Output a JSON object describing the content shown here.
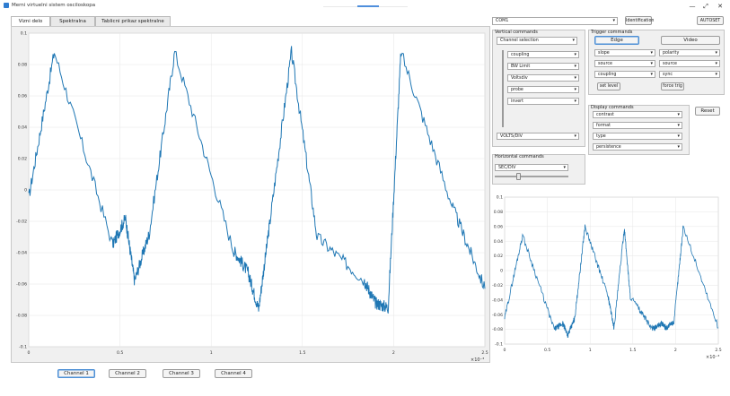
{
  "window": {
    "title": "Merni virtuelni sistem osciloskopa",
    "minimize": "—",
    "restore": "⤢",
    "close": "✕"
  },
  "tabs": [
    {
      "label": "Vizni delo",
      "active": true
    },
    {
      "label": "Spektralna analiza",
      "active": false
    },
    {
      "label": "Tablicni prikaz spektralne analize",
      "active": false
    }
  ],
  "channels": [
    "Channel 1",
    "Channel 2",
    "Channel 3",
    "Channel 4"
  ],
  "top_controls": {
    "device": "COM1",
    "identification": "Identification",
    "autoset": "AUTOSET"
  },
  "vertical": {
    "title": "Vertical commands",
    "channel_selection": "Channel selection",
    "items": [
      "coupling",
      "BW Limit",
      "Voltsdiv",
      "probe",
      "invert"
    ],
    "volts_div": "VOLTS/DIV"
  },
  "trigger": {
    "title": "Trigger commands",
    "edge": "Edge",
    "video": "Video",
    "left": [
      "slope",
      "source",
      "coupling"
    ],
    "right": [
      "polarity",
      "source",
      "sync"
    ],
    "set_level": "set level",
    "force_trig": "force trig"
  },
  "horizontal": {
    "title": "Horizontal commands",
    "sec_div": "SEC/DIV",
    "slider": 0.33
  },
  "display": {
    "title": "Display commands",
    "items": [
      "contrast",
      "format",
      "type",
      "persistence"
    ],
    "reset": "Reset"
  },
  "colors": {
    "trace": "#1f77b4",
    "accent": "#4c8fd6"
  },
  "chart_data": [
    {
      "type": "line",
      "title": "",
      "xlabel": "",
      "ylabel": "",
      "xlim": [
        0,
        0.0025
      ],
      "ylim": [
        -0.1,
        0.1
      ],
      "x_ticks": [
        "0",
        "0.5",
        "1",
        "1.5",
        "2",
        "2.5"
      ],
      "y_ticks": [
        "-0.1",
        "-0.08",
        "-0.06",
        "-0.04",
        "-0.02",
        "0",
        "0.02",
        "0.04",
        "0.06",
        "0.08",
        "0.1"
      ],
      "exponent": "×10⁻³",
      "grid": true,
      "series": [
        {
          "x": [
            0,
            0.00014,
            0.00046,
            0.00053,
            0.00058,
            0.00066,
            0.0008,
            0.00112,
            0.0012,
            0.00126,
            0.00132,
            0.00144,
            0.00158,
            0.00184,
            0.0019,
            0.00197,
            0.00204,
            0.00232,
            0.0025
          ],
          "y": [
            -0.005,
            0.088,
            -0.035,
            -0.018,
            -0.058,
            -0.028,
            0.088,
            -0.038,
            -0.052,
            -0.076,
            -0.022,
            0.088,
            -0.03,
            -0.058,
            -0.072,
            -0.075,
            0.088,
            -0.01,
            -0.063
          ]
        }
      ]
    },
    {
      "type": "line",
      "title": "",
      "xlabel": "",
      "ylabel": "",
      "xlim": [
        0,
        0.0025
      ],
      "ylim": [
        -0.1,
        0.1
      ],
      "x_ticks": [
        "0",
        "0.5",
        "1",
        "1.5",
        "2",
        "2.5"
      ],
      "y_ticks": [
        "-0.1",
        "-0.08",
        "-0.06",
        "-0.04",
        "-0.02",
        "0",
        "0.02",
        "0.04",
        "0.06",
        "0.08",
        "0.1"
      ],
      "exponent": "×10⁻³",
      "grid": true,
      "series": [
        {
          "x": [
            0,
            0.00021,
            0.00058,
            0.00068,
            0.00074,
            0.00082,
            0.00094,
            0.00121,
            0.00128,
            0.0014,
            0.00147,
            0.00173,
            0.00184,
            0.00189,
            0.00198,
            0.00209,
            0.0025
          ],
          "y": [
            -0.065,
            0.048,
            -0.08,
            -0.072,
            -0.088,
            -0.065,
            0.06,
            -0.035,
            -0.078,
            0.058,
            -0.035,
            -0.08,
            -0.072,
            -0.078,
            -0.07,
            0.06,
            -0.078
          ]
        }
      ]
    }
  ]
}
